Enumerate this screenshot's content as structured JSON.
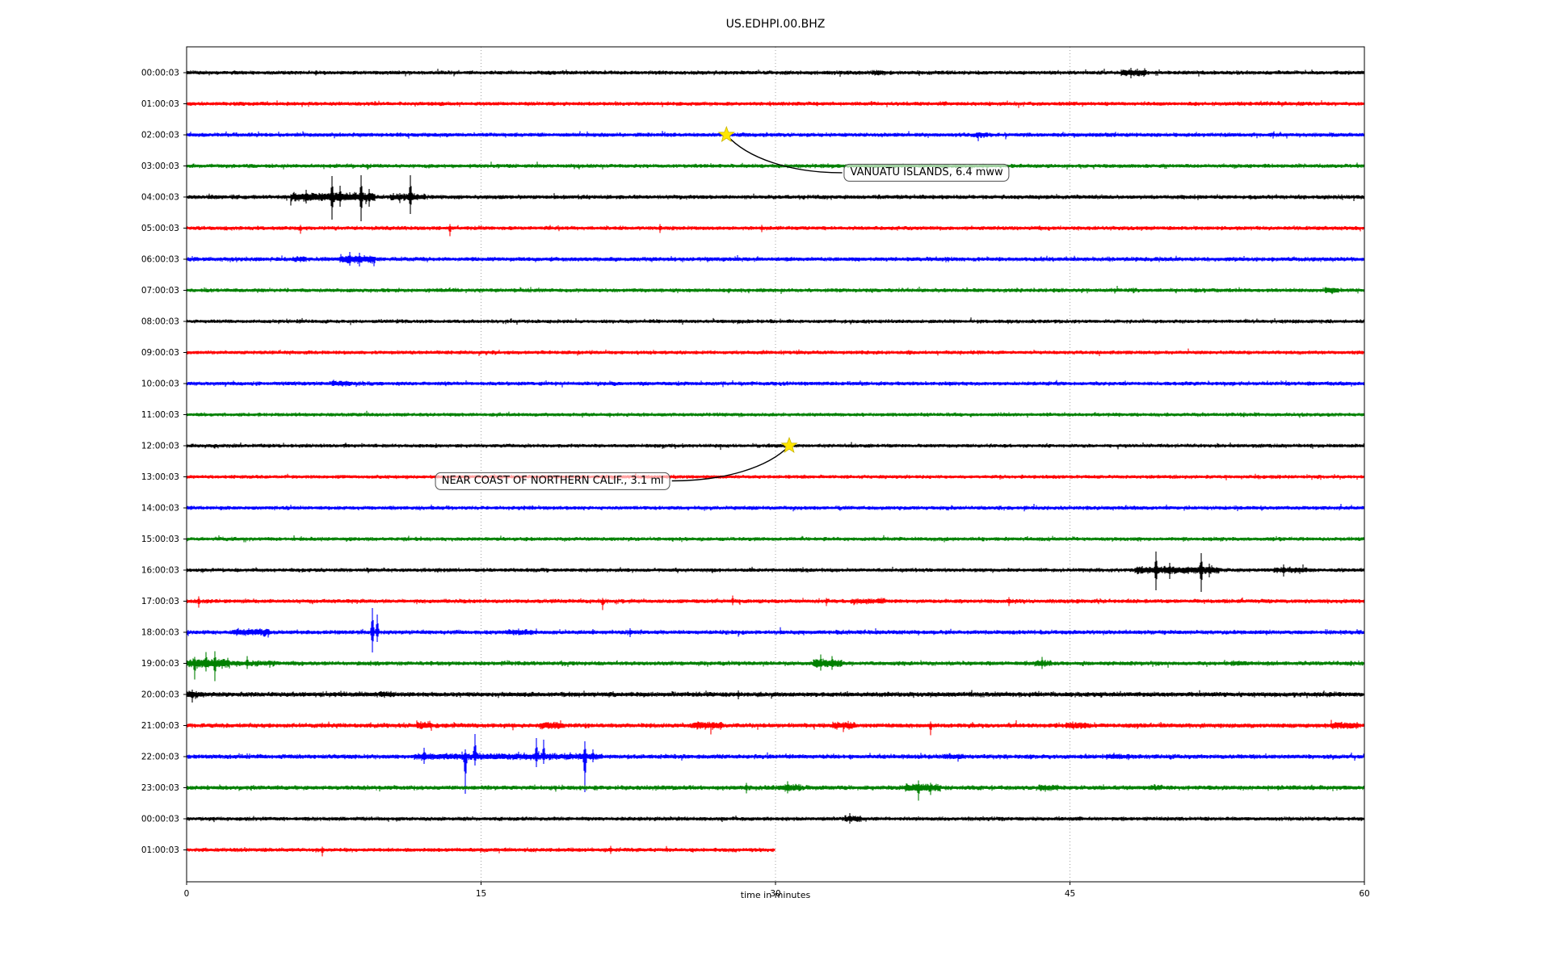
{
  "title": "US.EDHPI.00.BHZ",
  "chart_data": {
    "type": "line",
    "subtype": "seismogram-dayplot",
    "xlabel": "time in minutes",
    "x_range": [
      0,
      60
    ],
    "x_ticks": [
      0,
      15,
      30,
      45,
      60
    ],
    "grid_minutes": [
      15,
      30,
      45
    ],
    "color_cycle": [
      "#000000",
      "#ff0000",
      "#0000ff",
      "#008000"
    ],
    "style": {
      "grid_color": "#999999",
      "star_fill": "#ffe600",
      "star_edge": "#c8b400",
      "leader_color": "#000000",
      "annotation_border": "#4d4d4d"
    },
    "rows": [
      {
        "label": "00:00:03",
        "color": "#000000",
        "duration_min": 60,
        "amp": 3.2,
        "bursts": [
          [
            34.9,
            35.5,
            1.5
          ],
          [
            47.6,
            48.9,
            1.9
          ]
        ],
        "spikes": [
          [
            48.1,
            6,
            7
          ]
        ]
      },
      {
        "label": "01:00:03",
        "color": "#ff0000",
        "duration_min": 60,
        "amp": 3.2,
        "bursts": [],
        "spikes": []
      },
      {
        "label": "02:00:03",
        "color": "#0000ff",
        "duration_min": 60,
        "amp": 3.3,
        "bursts": [
          [
            40.2,
            40.8,
            1.6
          ]
        ],
        "spikes": []
      },
      {
        "label": "03:00:03",
        "color": "#008000",
        "duration_min": 60,
        "amp": 3.2,
        "bursts": [],
        "spikes": []
      },
      {
        "label": "04:00:03",
        "color": "#000000",
        "duration_min": 60,
        "amp": 3.3,
        "bursts": [
          [
            5.3,
            9.6,
            2.2
          ],
          [
            10.4,
            12.2,
            1.7
          ]
        ],
        "spikes": [
          [
            6.1,
            9,
            8
          ],
          [
            7.4,
            26,
            28
          ],
          [
            7.8,
            14,
            12
          ],
          [
            8.9,
            27,
            30
          ],
          [
            9.3,
            10,
            12
          ],
          [
            11.4,
            27,
            21
          ]
        ]
      },
      {
        "label": "05:00:03",
        "color": "#ff0000",
        "duration_min": 60,
        "amp": 3.2,
        "bursts": [],
        "spikes": [
          [
            5.8,
            4,
            7
          ],
          [
            13.4,
            5,
            10
          ],
          [
            24.1,
            5,
            6
          ],
          [
            29.3,
            4,
            5
          ]
        ]
      },
      {
        "label": "06:00:03",
        "color": "#0000ff",
        "duration_min": 60,
        "amp": 3.4,
        "bursts": [
          [
            5.4,
            6.1,
            1.5
          ],
          [
            7.8,
            9.6,
            2.0
          ]
        ],
        "spikes": [
          [
            8.3,
            9,
            8
          ],
          [
            8.8,
            8,
            9
          ]
        ]
      },
      {
        "label": "07:00:03",
        "color": "#008000",
        "duration_min": 60,
        "amp": 3.2,
        "bursts": [
          [
            58.0,
            58.7,
            1.7
          ]
        ],
        "spikes": []
      },
      {
        "label": "08:00:03",
        "color": "#000000",
        "duration_min": 60,
        "amp": 3.0,
        "bursts": [],
        "spikes": []
      },
      {
        "label": "09:00:03",
        "color": "#ff0000",
        "duration_min": 60,
        "amp": 3.1,
        "bursts": [],
        "spikes": []
      },
      {
        "label": "10:00:03",
        "color": "#0000ff",
        "duration_min": 60,
        "amp": 3.2,
        "bursts": [
          [
            7.4,
            8.4,
            1.6
          ]
        ],
        "spikes": []
      },
      {
        "label": "11:00:03",
        "color": "#008000",
        "duration_min": 60,
        "amp": 3.0,
        "bursts": [],
        "spikes": []
      },
      {
        "label": "12:00:03",
        "color": "#000000",
        "duration_min": 60,
        "amp": 3.0,
        "bursts": [],
        "spikes": []
      },
      {
        "label": "13:00:03",
        "color": "#ff0000",
        "duration_min": 60,
        "amp": 3.0,
        "bursts": [],
        "spikes": []
      },
      {
        "label": "14:00:03",
        "color": "#0000ff",
        "duration_min": 60,
        "amp": 3.1,
        "bursts": [],
        "spikes": []
      },
      {
        "label": "15:00:03",
        "color": "#008000",
        "duration_min": 60,
        "amp": 3.1,
        "bursts": [],
        "spikes": []
      },
      {
        "label": "16:00:03",
        "color": "#000000",
        "duration_min": 60,
        "amp": 3.1,
        "bursts": [
          [
            48.3,
            52.6,
            2.0
          ],
          [
            55.4,
            57.1,
            1.6
          ]
        ],
        "spikes": [
          [
            49.4,
            23,
            25
          ],
          [
            50.1,
            9,
            11
          ],
          [
            51.7,
            21,
            27
          ],
          [
            52.1,
            8,
            9
          ],
          [
            55.9,
            7,
            8
          ]
        ]
      },
      {
        "label": "17:00:03",
        "color": "#ff0000",
        "duration_min": 60,
        "amp": 3.3,
        "bursts": [
          [
            33.8,
            35.6,
            1.5
          ]
        ],
        "spikes": [
          [
            0.6,
            6,
            8
          ],
          [
            21.2,
            4,
            11
          ],
          [
            27.8,
            7,
            5
          ],
          [
            32.6,
            4,
            6
          ],
          [
            41.9,
            5,
            6
          ]
        ]
      },
      {
        "label": "18:00:03",
        "color": "#0000ff",
        "duration_min": 60,
        "amp": 3.4,
        "bursts": [
          [
            2.4,
            4.2,
            1.8
          ],
          [
            16.3,
            17.6,
            1.4
          ]
        ],
        "spikes": [
          [
            9.45,
            30,
            25
          ],
          [
            9.7,
            22,
            12
          ],
          [
            22.6,
            5,
            6
          ]
        ]
      },
      {
        "label": "19:00:03",
        "color": "#008000",
        "duration_min": 60,
        "amp": 3.4,
        "bursts": [
          [
            0.0,
            2.2,
            2.2
          ],
          [
            2.2,
            4.5,
            1.4
          ],
          [
            31.9,
            33.4,
            2.0
          ],
          [
            43.2,
            44.1,
            1.6
          ],
          [
            53.2,
            54.0,
            1.4
          ]
        ],
        "spikes": [
          [
            0.4,
            8,
            20
          ],
          [
            1.0,
            14,
            10
          ],
          [
            1.45,
            15,
            22
          ],
          [
            3.1,
            9,
            7
          ],
          [
            32.3,
            11,
            9
          ],
          [
            32.9,
            9,
            8
          ],
          [
            43.6,
            8,
            7
          ]
        ]
      },
      {
        "label": "20:00:03",
        "color": "#000000",
        "duration_min": 60,
        "amp": 3.8,
        "bursts": [
          [
            0.0,
            0.9,
            1.6
          ],
          [
            9.8,
            10.5,
            1.4
          ]
        ],
        "spikes": [
          [
            0.3,
            6,
            10
          ],
          [
            28.1,
            5,
            6
          ]
        ]
      },
      {
        "label": "21:00:03",
        "color": "#ff0000",
        "duration_min": 60,
        "amp": 3.6,
        "bursts": [
          [
            11.7,
            12.5,
            1.8
          ],
          [
            18.0,
            19.2,
            1.8
          ],
          [
            25.8,
            27.3,
            1.7
          ],
          [
            32.9,
            34.1,
            1.8
          ],
          [
            44.8,
            46.0,
            1.6
          ],
          [
            58.3,
            59.7,
            1.7
          ]
        ],
        "spikes": [
          [
            37.9,
            5,
            12
          ]
        ]
      },
      {
        "label": "22:00:03",
        "color": "#0000ff",
        "duration_min": 60,
        "amp": 3.6,
        "bursts": [
          [
            11.6,
            21.2,
            1.5
          ],
          [
            38.5,
            39.6,
            1.35
          ],
          [
            46.8,
            48.0,
            1.35
          ]
        ],
        "spikes": [
          [
            12.1,
            11,
            9
          ],
          [
            14.2,
            9,
            46
          ],
          [
            14.7,
            28,
            11
          ],
          [
            17.8,
            23,
            13
          ],
          [
            18.2,
            21,
            9
          ],
          [
            20.3,
            19,
            44
          ],
          [
            20.7,
            9,
            7
          ]
        ]
      },
      {
        "label": "23:00:03",
        "color": "#008000",
        "duration_min": 60,
        "amp": 3.6,
        "bursts": [
          [
            30.1,
            31.3,
            1.6
          ],
          [
            36.6,
            38.4,
            1.8
          ],
          [
            43.4,
            44.4,
            1.5
          ],
          [
            49.0,
            49.7,
            1.4
          ]
        ],
        "spikes": [
          [
            28.5,
            6,
            7
          ],
          [
            30.6,
            8,
            7
          ],
          [
            37.3,
            9,
            16
          ],
          [
            37.9,
            6,
            9
          ]
        ]
      },
      {
        "label": "00:00:03",
        "color": "#000000",
        "duration_min": 60,
        "amp": 3.2,
        "bursts": [
          [
            33.5,
            34.4,
            1.7
          ]
        ],
        "spikes": [
          [
            33.8,
            7,
            6
          ]
        ]
      },
      {
        "label": "01:00:03",
        "color": "#ff0000",
        "duration_min": 30,
        "amp": 3.2,
        "bursts": [],
        "spikes": [
          [
            6.9,
            4,
            8
          ],
          [
            21.6,
            5,
            5
          ]
        ]
      }
    ],
    "events": [
      {
        "label": "VANUATU ISLANDS, 6.4 mww",
        "row": 2,
        "star_minute": 27.5,
        "box_minute": 37.7,
        "box_row": 3.22
      },
      {
        "label": "NEAR COAST OF NORTHERN CALIF., 3.1 ml",
        "row": 12,
        "star_minute": 30.7,
        "box_minute": 18.65,
        "box_row": 13.13
      }
    ]
  }
}
